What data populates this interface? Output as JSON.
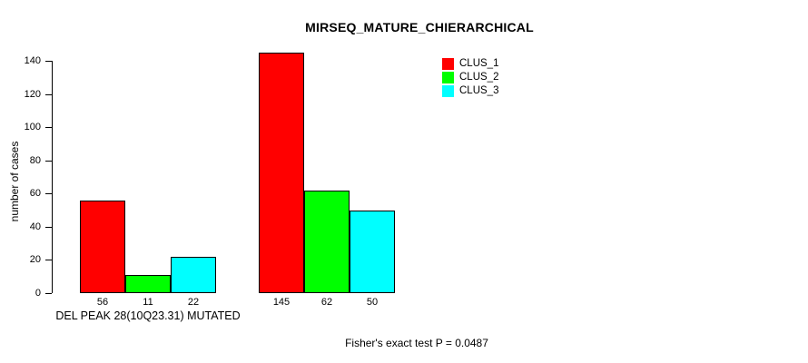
{
  "chart_data": {
    "type": "bar",
    "title": "MIRSEQ_MATURE_CHIERARCHICAL",
    "xlabel": "",
    "ylabel": "number of cases",
    "ylim": [
      0,
      145
    ],
    "yticks": [
      0,
      20,
      40,
      60,
      80,
      100,
      120,
      140
    ],
    "grid": false,
    "legend_position": "top-right",
    "categories": [
      "DEL PEAK 28(10Q23.31) MUTATED",
      ""
    ],
    "series": [
      {
        "name": "CLUS_1",
        "color": "#FF0000",
        "values": [
          56,
          145
        ]
      },
      {
        "name": "CLUS_2",
        "color": "#00FF00",
        "values": [
          11,
          62
        ]
      },
      {
        "name": "CLUS_3",
        "color": "#00FFFF",
        "values": [
          22,
          50
        ]
      }
    ],
    "groups": [
      {
        "label": "DEL PEAK 28(10Q23.31) MUTATED",
        "values": [
          56,
          11,
          22
        ]
      },
      {
        "label": "",
        "values": [
          145,
          62,
          50
        ]
      }
    ],
    "bar_value_labels": [
      [
        "56",
        "11",
        "22"
      ],
      [
        "145",
        "62",
        "50"
      ]
    ],
    "annotation": "Fisher's exact test P = 0.0487",
    "colors": {
      "bar_border": "#000000",
      "text": "#000000",
      "background": "#FFFFFF"
    }
  }
}
